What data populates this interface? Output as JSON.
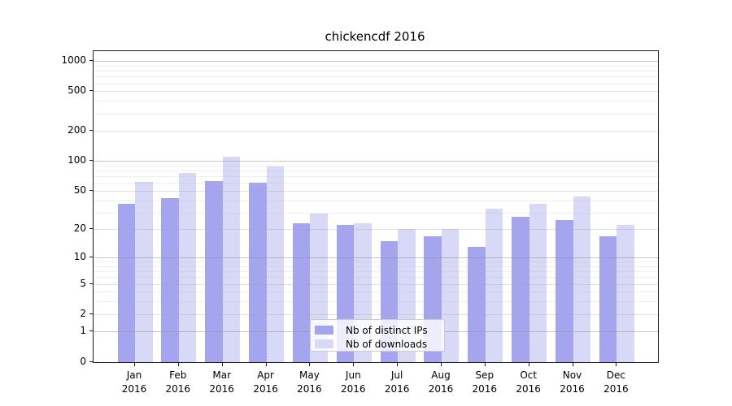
{
  "chart_data": {
    "type": "bar",
    "title": "chickencdf 2016",
    "x_categories": [
      {
        "month": "Jan",
        "year": "2016"
      },
      {
        "month": "Feb",
        "year": "2016"
      },
      {
        "month": "Mar",
        "year": "2016"
      },
      {
        "month": "Apr",
        "year": "2016"
      },
      {
        "month": "May",
        "year": "2016"
      },
      {
        "month": "Jun",
        "year": "2016"
      },
      {
        "month": "Jul",
        "year": "2016"
      },
      {
        "month": "Aug",
        "year": "2016"
      },
      {
        "month": "Sep",
        "year": "2016"
      },
      {
        "month": "Oct",
        "year": "2016"
      },
      {
        "month": "Nov",
        "year": "2016"
      },
      {
        "month": "Dec",
        "year": "2016"
      }
    ],
    "series": [
      {
        "name": "Nb of distinct IPs",
        "color": "#a4a4ef",
        "values": [
          37,
          42,
          63,
          60,
          23,
          22,
          15,
          17,
          13,
          27,
          25,
          17
        ]
      },
      {
        "name": "Nb of downloads",
        "color": "#d8d8f7",
        "values": [
          61,
          76,
          110,
          88,
          29,
          23,
          20,
          20,
          33,
          37,
          44,
          22
        ]
      }
    ],
    "y_axis": {
      "scale": "log1p",
      "tick_values": [
        0,
        1,
        2,
        5,
        10,
        20,
        50,
        100,
        200,
        500,
        1000
      ],
      "tick_labels": [
        "0",
        "1",
        "2",
        "5",
        "10",
        "20",
        "50",
        "100",
        "200",
        "500",
        "1000"
      ],
      "decade_gridlines": [
        1,
        10,
        100,
        1000
      ],
      "mid_gridlines": [
        2,
        5,
        20,
        50,
        200,
        500
      ],
      "minor_gridlines": [
        3,
        4,
        6,
        7,
        8,
        9,
        30,
        40,
        60,
        70,
        80,
        90,
        300,
        400,
        600,
        700,
        800,
        900
      ],
      "range": [
        0,
        1250
      ]
    },
    "xlabel": "",
    "ylabel": "",
    "grid": true,
    "legend": {
      "position": "lower-center",
      "entries": [
        "Nb of distinct IPs",
        "Nb of downloads"
      ]
    }
  },
  "colors": {
    "background": "#ffffff",
    "spine": "#1a1a1a",
    "bar_distinct_ips": "#a4a4ef",
    "bar_downloads": "#d8d8f7",
    "grid_decade": "#c2c2c2",
    "grid_minor": "#e9e9e9",
    "legend_border": "#cccccc"
  }
}
